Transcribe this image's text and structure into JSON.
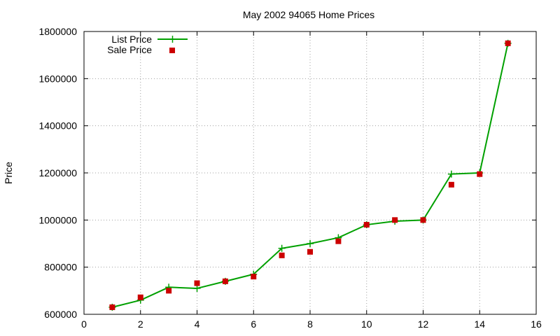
{
  "chart_data": {
    "type": "line",
    "title": "May 2002 94065 Home Prices",
    "xlabel": "",
    "ylabel": "Price",
    "xlim": [
      0,
      16
    ],
    "ylim": [
      600000,
      1800000
    ],
    "xticks": [
      "0",
      "2",
      "4",
      "6",
      "8",
      "10",
      "12",
      "14",
      "16"
    ],
    "yticks": [
      "600000",
      "800000",
      "1000000",
      "1200000",
      "1400000",
      "1600000",
      "1800000"
    ],
    "grid": true,
    "legend_position": "top-left",
    "series": [
      {
        "name": "List Price",
        "style": "line-with-plus-markers",
        "color": "#00a000",
        "x": [
          1,
          2,
          3,
          4,
          5,
          6,
          7,
          8,
          9,
          10,
          11,
          12,
          13,
          14,
          15
        ],
        "y": [
          630000,
          660000,
          715000,
          710000,
          740000,
          770000,
          880000,
          900000,
          925000,
          980000,
          995000,
          1000000,
          1195000,
          1200000,
          1750000
        ]
      },
      {
        "name": "Sale Price",
        "style": "square-markers",
        "color": "#cc0000",
        "x": [
          1,
          2,
          3,
          4,
          5,
          6,
          7,
          8,
          9,
          10,
          11,
          12,
          13,
          14,
          15
        ],
        "y": [
          630000,
          672000,
          700000,
          732000,
          740000,
          760000,
          850000,
          865000,
          910000,
          980000,
          1000000,
          1000000,
          1150000,
          1195000,
          1750000
        ]
      }
    ]
  }
}
